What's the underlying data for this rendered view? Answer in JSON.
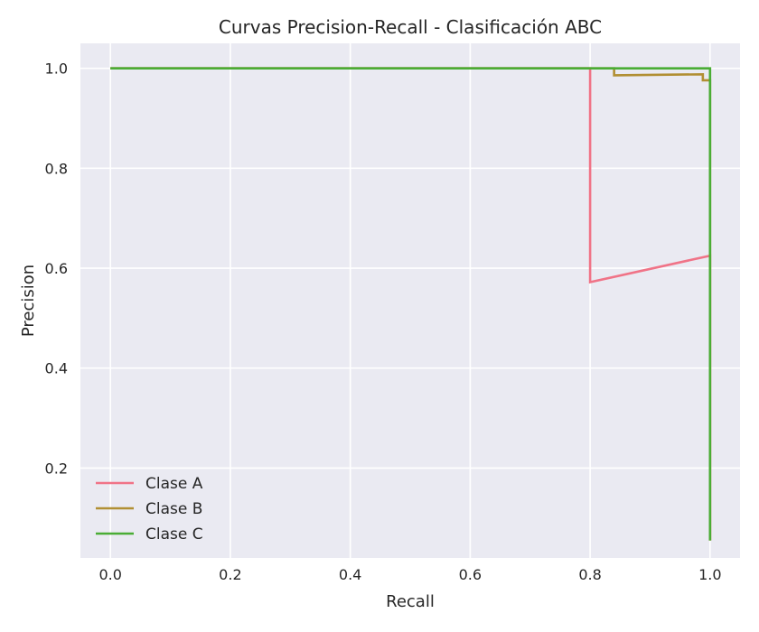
{
  "chart_data": {
    "type": "line",
    "title": "Curvas Precision-Recall - Clasificación ABC",
    "xlabel": "Recall",
    "ylabel": "Precision",
    "xlim": [
      -0.05,
      1.05
    ],
    "ylim": [
      0.02,
      1.05
    ],
    "xticks": [
      0.0,
      0.2,
      0.4,
      0.6,
      0.8,
      1.0
    ],
    "xtick_labels": [
      "0.0",
      "0.2",
      "0.4",
      "0.6",
      "0.8",
      "1.0"
    ],
    "yticks": [
      0.2,
      0.4,
      0.6,
      0.8,
      1.0
    ],
    "ytick_labels": [
      "0.2",
      "0.4",
      "0.6",
      "0.8",
      "1.0"
    ],
    "grid": true,
    "legend_position": "lower-left",
    "background_color": "#eaeaf2",
    "series": [
      {
        "name": "Clase A",
        "color": "#f07387",
        "x": [
          0.0,
          0.8,
          0.8,
          1.0,
          1.0
        ],
        "y": [
          1.0,
          1.0,
          0.572,
          0.625,
          0.055
        ]
      },
      {
        "name": "Clase B",
        "color": "#b18f33",
        "x": [
          0.0,
          0.84,
          0.84,
          0.988,
          0.988,
          1.0,
          1.0
        ],
        "y": [
          1.0,
          1.0,
          0.986,
          0.988,
          0.976,
          0.976,
          0.055
        ]
      },
      {
        "name": "Clase C",
        "color": "#4aad35",
        "x": [
          0.0,
          1.0,
          1.0
        ],
        "y": [
          1.0,
          1.0,
          0.055
        ]
      }
    ]
  }
}
